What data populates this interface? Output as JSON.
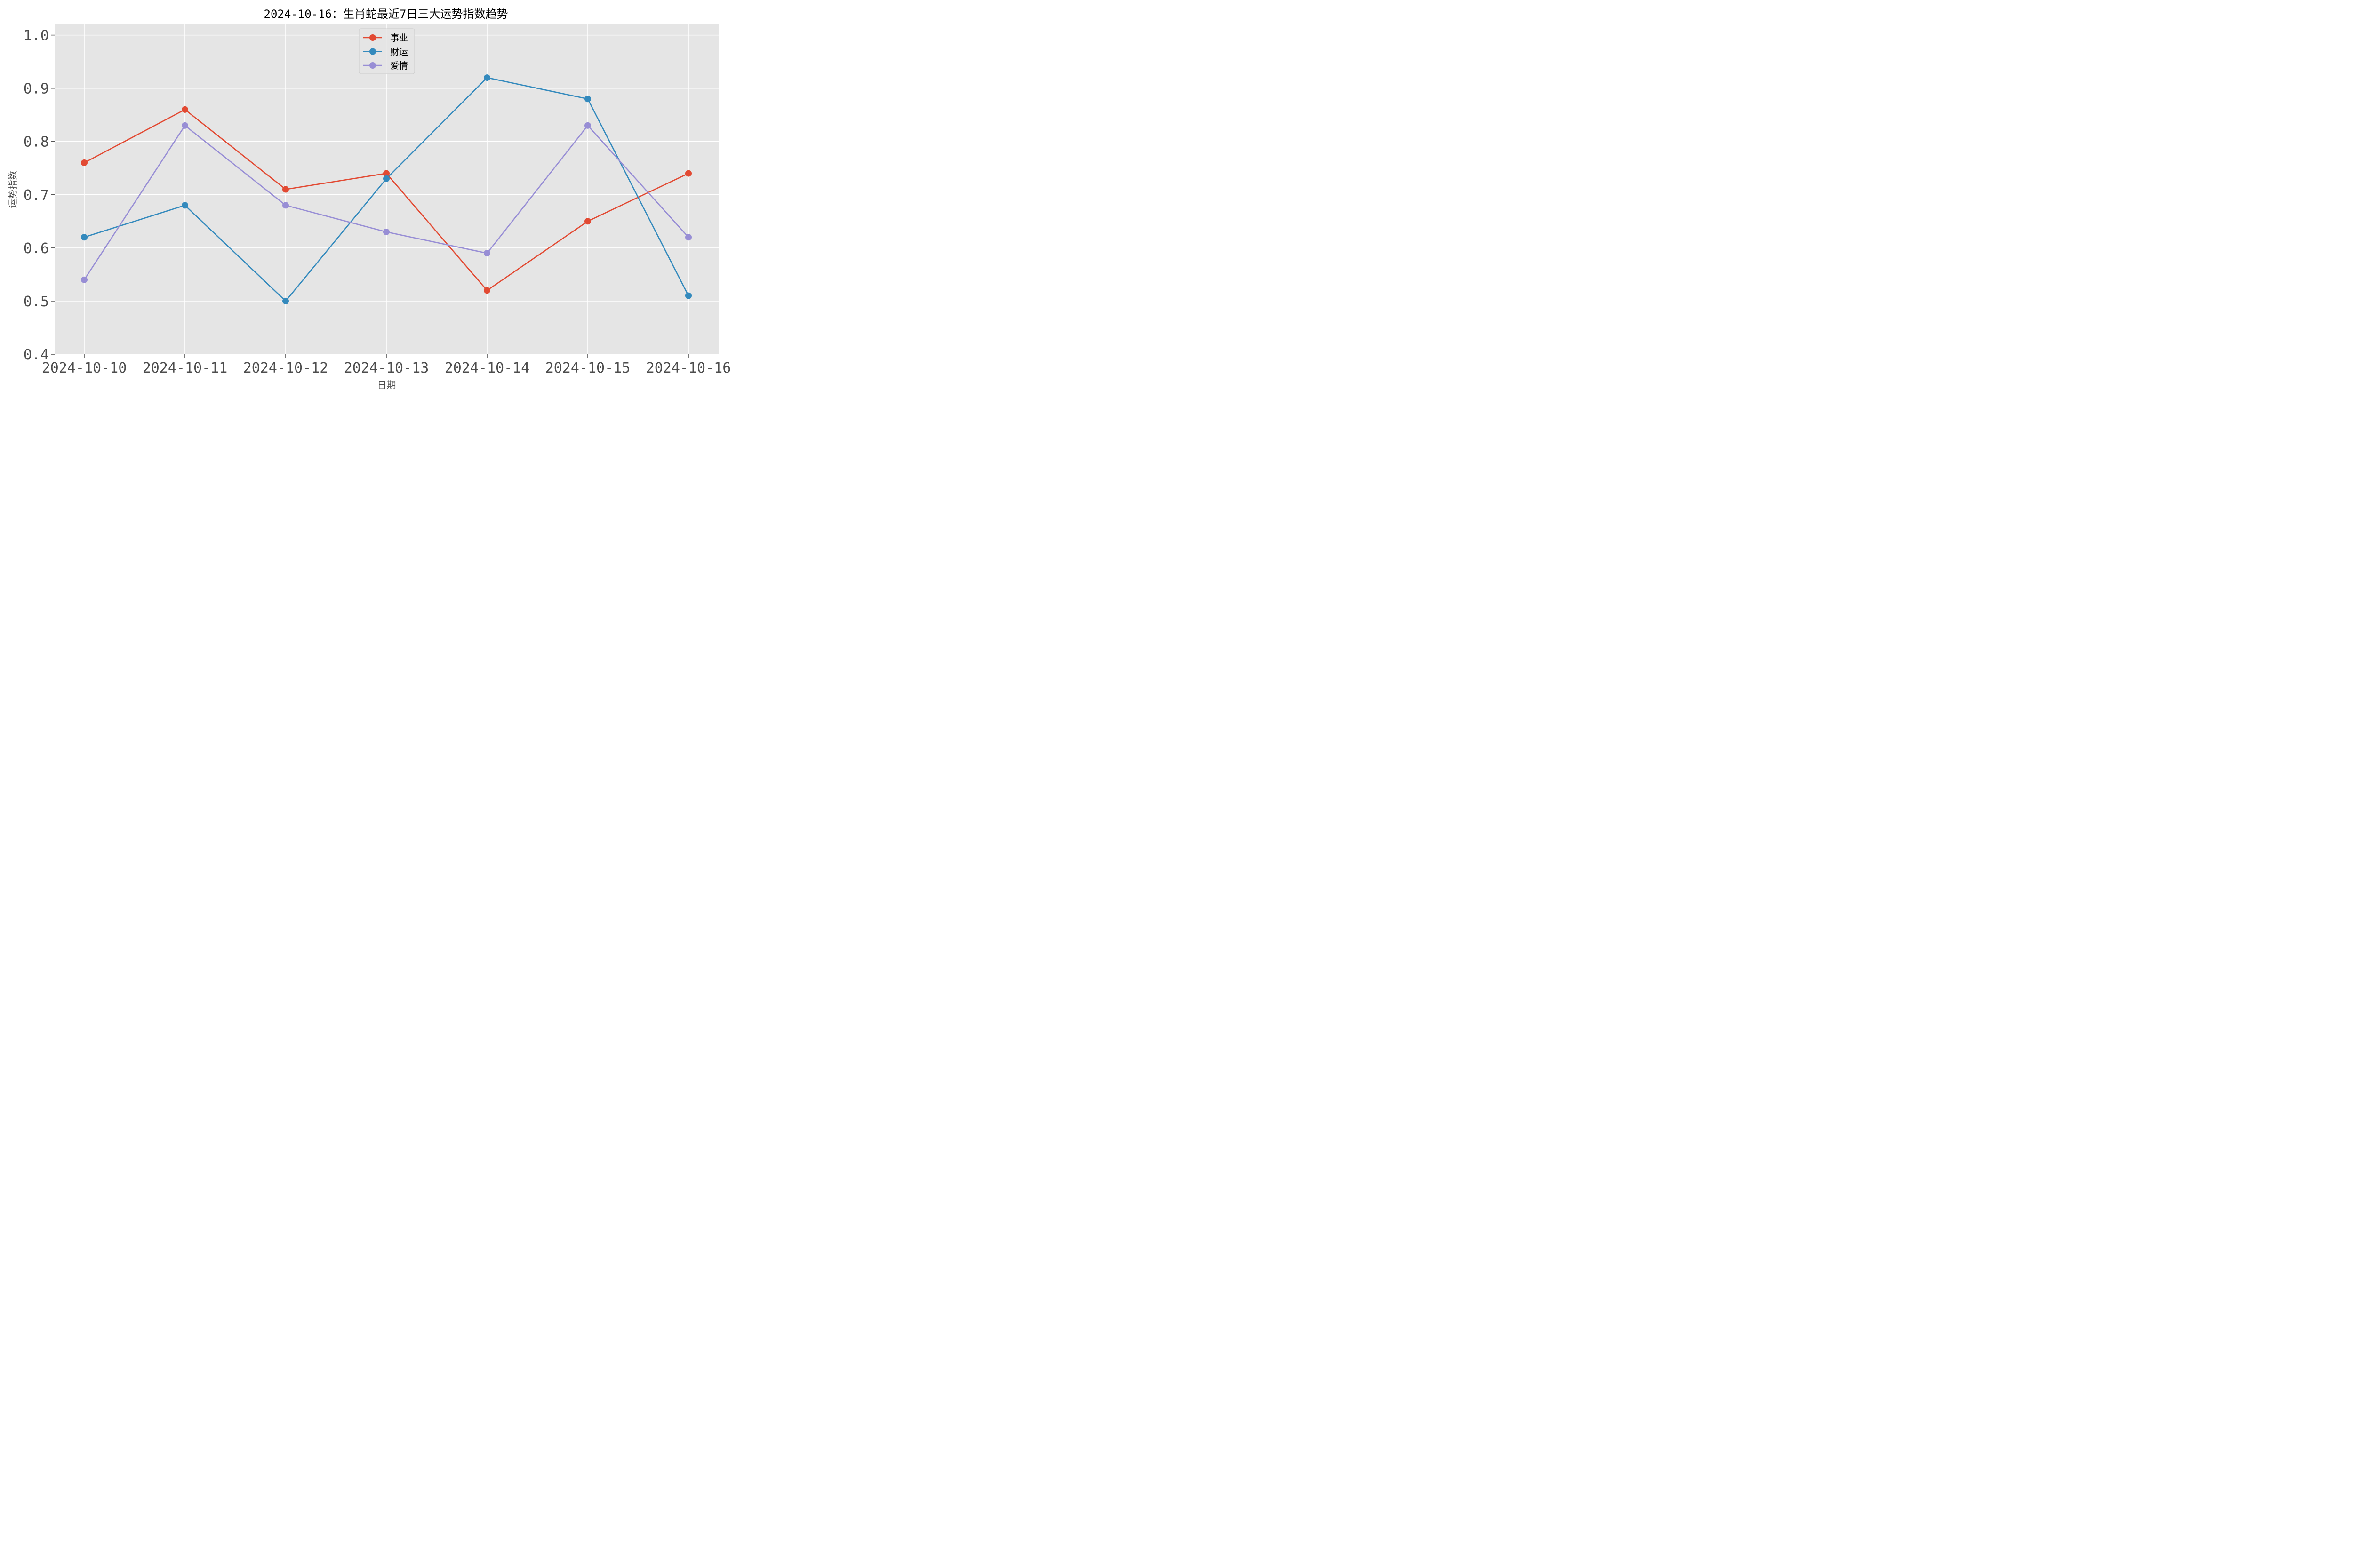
{
  "chart_data": {
    "type": "line",
    "title": "2024-10-16：生肖蛇最近7日三大运势指数趋势",
    "xlabel": "日期",
    "ylabel": "运势指数",
    "categories": [
      "2024-10-10",
      "2024-10-11",
      "2024-10-12",
      "2024-10-13",
      "2024-10-14",
      "2024-10-15",
      "2024-10-16"
    ],
    "ylim": [
      0.4,
      1.02
    ],
    "yticks": [
      "0.4",
      "0.5",
      "0.6",
      "0.7",
      "0.8",
      "0.9",
      "1.0"
    ],
    "grid": true,
    "legend_position": "top-center",
    "series": [
      {
        "name": "事业",
        "color": "#E24A33",
        "values": [
          0.76,
          0.86,
          0.71,
          0.74,
          0.52,
          0.65,
          0.74
        ]
      },
      {
        "name": "财运",
        "color": "#348ABD",
        "values": [
          0.62,
          0.68,
          0.5,
          0.73,
          0.92,
          0.88,
          0.51
        ]
      },
      {
        "name": "爱情",
        "color": "#988ED5",
        "values": [
          0.54,
          0.83,
          0.68,
          0.63,
          0.59,
          0.83,
          0.62
        ]
      }
    ],
    "plot_background": "#E5E5E5",
    "grid_color": "#FFFFFF"
  }
}
